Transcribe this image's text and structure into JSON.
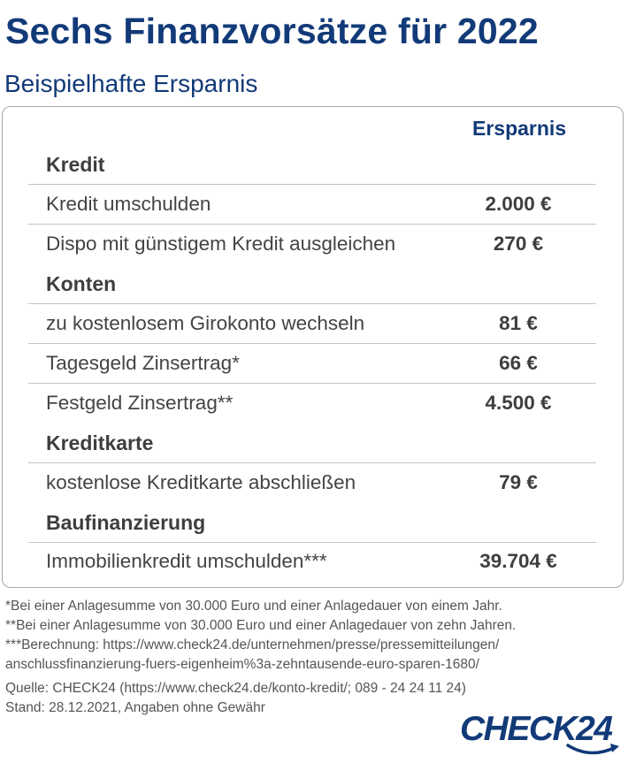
{
  "header": {
    "title": "Sechs Finanzvorsätze für 2022",
    "subtitle": "Beispielhafte Ersparnis"
  },
  "table": {
    "column_header": "Ersparnis",
    "sections": [
      {
        "category": "Kredit",
        "rows": [
          {
            "label": "Kredit umschulden",
            "value": "2.000 €"
          },
          {
            "label": "Dispo mit günstigem Kredit ausgleichen",
            "value": "270 €"
          }
        ]
      },
      {
        "category": "Konten",
        "rows": [
          {
            "label": "zu kostenlosem Girokonto wechseln",
            "value": "81 €"
          },
          {
            "label": "Tagesgeld Zinsertrag*",
            "value": "66 €"
          },
          {
            "label": "Festgeld Zinsertrag**",
            "value": "4.500 €"
          }
        ]
      },
      {
        "category": "Kreditkarte",
        "rows": [
          {
            "label": "kostenlose Kreditkarte abschließen",
            "value": "79 €"
          }
        ]
      },
      {
        "category": "Baufinanzierung",
        "rows": [
          {
            "label": "Immobilienkredit umschulden***",
            "value": "39.704 €"
          }
        ]
      }
    ]
  },
  "footnotes": [
    "*Bei einer Anlagesumme von 30.000 Euro und einer Anlagedauer von einem Jahr.",
    "**Bei einer Anlagesumme von 30.000 Euro und einer Anlagedauer von zehn Jahren.",
    "***Berechnung: https://www.check24.de/unternehmen/presse/pressemitteilungen/",
    "anschlussfinanzierung-fuers-eigenheim%3a-zehntausende-euro-sparen-1680/",
    "Quelle: CHECK24 (https://www.check24.de/konto-kredit/; 089 - 24 24 11 24)",
    "Stand: 28.12.2021, Angaben ohne Gewähr"
  ],
  "logo": {
    "text": "CHECK24"
  },
  "colors": {
    "brand": "#123a78",
    "text": "#444444",
    "rule": "#c4c4c4"
  }
}
